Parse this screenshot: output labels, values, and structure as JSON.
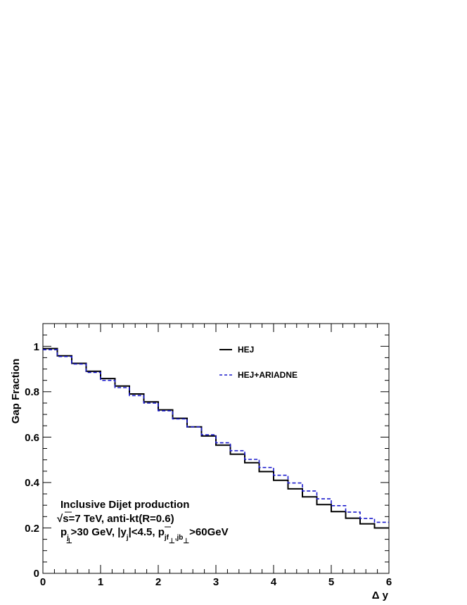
{
  "chart_data": {
    "type": "line",
    "step": true,
    "xlabel": "Δ y",
    "ylabel": "Gap Fraction",
    "xlim": [
      0,
      6
    ],
    "ylim": [
      0,
      1.1
    ],
    "x_ticks": [
      "0",
      "1",
      "2",
      "3",
      "4",
      "5",
      "6"
    ],
    "y_ticks": [
      "0",
      "0.2",
      "0.4",
      "0.6",
      "0.8",
      "1"
    ],
    "bin_edges": [
      0,
      0.25,
      0.5,
      0.75,
      1.0,
      1.25,
      1.5,
      1.75,
      2.0,
      2.25,
      2.5,
      2.75,
      3.0,
      3.25,
      3.5,
      3.75,
      4.0,
      4.25,
      4.5,
      4.75,
      5.0,
      5.25,
      5.5,
      5.75,
      6.0
    ],
    "series": [
      {
        "name": "HEJ",
        "color": "#000000",
        "dash": "solid",
        "values": [
          0.99,
          0.958,
          0.925,
          0.89,
          0.858,
          0.825,
          0.79,
          0.755,
          0.72,
          0.683,
          0.645,
          0.605,
          0.565,
          0.525,
          0.487,
          0.448,
          0.41,
          0.372,
          0.337,
          0.303,
          0.272,
          0.243,
          0.218,
          0.2
        ]
      },
      {
        "name": "HEJ+ARIADNE",
        "color": "#1a1acc",
        "dash": "dashed",
        "values": [
          0.985,
          0.955,
          0.922,
          0.885,
          0.85,
          0.818,
          0.783,
          0.75,
          0.716,
          0.68,
          0.645,
          0.61,
          0.575,
          0.54,
          0.502,
          0.466,
          0.432,
          0.398,
          0.363,
          0.328,
          0.298,
          0.27,
          0.242,
          0.225
        ]
      }
    ],
    "legend_position": "top-right",
    "annotations": {
      "line1": "Inclusive Dijet production",
      "line2_root": "√",
      "line2": "s=7 TeV, anti-kt(R=0.6)",
      "line3": {
        "p": "p",
        "p_sub": "j",
        "p_subsub": "⊥",
        "gt30": ">30 GeV, |y",
        "y_sub": "j",
        "lt45": "|<4.5, ",
        "pbar": "p",
        "pbar_sub": "jf",
        "pbar_subsub": "⊥",
        "pbar_sub2": ",jb",
        "pbar_subsub2": "⊥",
        "gt60": ">60GeV"
      }
    }
  }
}
